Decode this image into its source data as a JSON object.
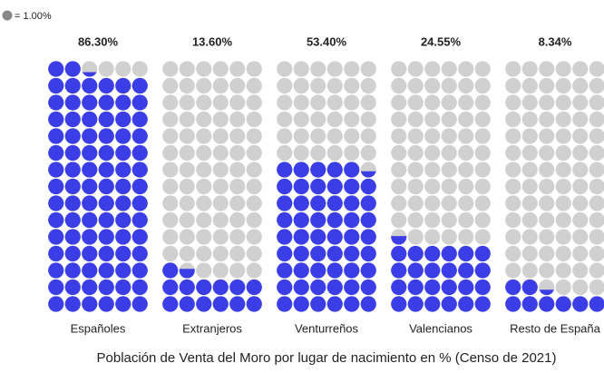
{
  "chart_data": {
    "type": "waffle",
    "title": "Población de Venta del Moro por lugar de nacimiento en % (Censo de 2021)",
    "legend_label": "= 1.00%",
    "categories": [
      "Españoles",
      "Extranjeros",
      "Venturreños",
      "Valencianos",
      "Resto de España"
    ],
    "values": [
      86.3,
      13.6,
      53.4,
      24.55,
      8.34
    ],
    "value_labels": [
      "86.30%",
      "13.60%",
      "53.40%",
      "24.55%",
      "8.34%"
    ],
    "color": "#3b3de6",
    "empty_color": "#d0d0d0",
    "columns": 6,
    "rows": 15
  }
}
